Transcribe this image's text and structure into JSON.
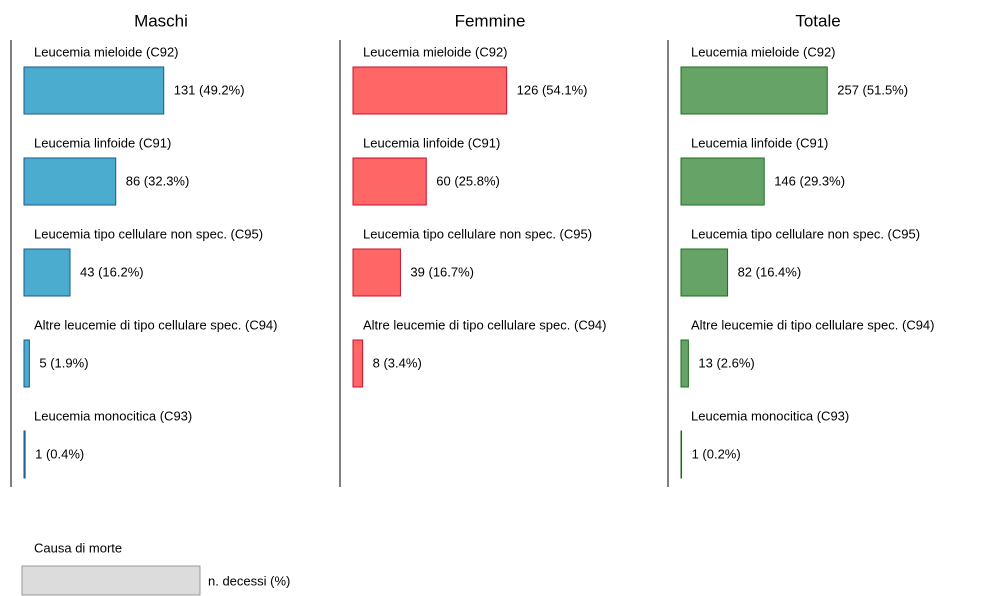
{
  "chart_data": [
    {
      "type": "bar",
      "title": "Maschi",
      "categories": [
        "Leucemia mieloide (C92)",
        "Leucemia linfoide (C91)",
        "Leucemia tipo cellulare non spec. (C95)",
        "Altre leucemie di tipo cellulare spec. (C94)",
        "Leucemia monocitica (C93)"
      ],
      "values": [
        49.2,
        32.3,
        16.2,
        1.9,
        0.4
      ],
      "value_labels": [
        "131 (49.2%)",
        "86 (32.3%)",
        "43 (16.2%)",
        "5 (1.9%)",
        "1 (0.4%)"
      ],
      "color": "#4bacd0",
      "edge_color": "#1a5a8a"
    },
    {
      "type": "bar",
      "title": "Femmine",
      "categories": [
        "Leucemia mieloide (C92)",
        "Leucemia linfoide (C91)",
        "Leucemia tipo cellulare non spec. (C95)",
        "Altre leucemie di tipo cellulare spec. (C94)"
      ],
      "values": [
        54.1,
        25.8,
        16.7,
        3.4
      ],
      "value_labels": [
        "126 (54.1%)",
        "60 (25.8%)",
        "39 (16.7%)",
        "8 (3.4%)"
      ],
      "color": "#ff6666",
      "edge_color": "#c8102e"
    },
    {
      "type": "bar",
      "title": "Totale",
      "categories": [
        "Leucemia mieloide (C92)",
        "Leucemia linfoide (C91)",
        "Leucemia tipo cellulare non spec. (C95)",
        "Altre leucemie di tipo cellulare spec. (C94)",
        "Leucemia monocitica (C93)"
      ],
      "values": [
        51.5,
        29.3,
        16.4,
        2.6,
        0.2
      ],
      "value_labels": [
        "257 (51.5%)",
        "146 (29.3%)",
        "82 (16.4%)",
        "13 (2.6%)",
        "1 (0.2%)"
      ],
      "color": "#66a366",
      "edge_color": "#1e6e1e"
    }
  ],
  "legend": {
    "title": "Causa di morte",
    "label": "n. decessi (%)"
  }
}
